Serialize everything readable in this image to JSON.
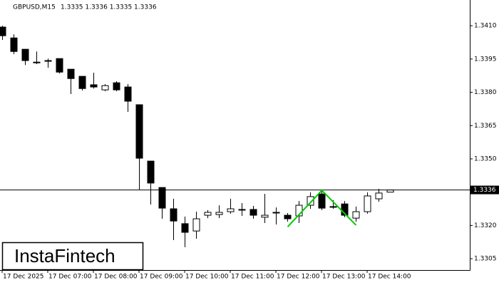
{
  "chart_data": {
    "type": "candlestick",
    "title": "GBPUSD,M15",
    "subtitle": "1.3335 1.3336 1.3335 1.3336",
    "watermark": "InstaFintech",
    "categories": [
      "17 Dec 2025",
      null,
      null,
      null,
      "17 Dec 07:00",
      null,
      null,
      null,
      "17 Dec 08:00",
      null,
      null,
      null,
      "17 Dec 09:00",
      null,
      null,
      null,
      "17 Dec 10:00",
      null,
      null,
      null,
      "17 Dec 11:00",
      null,
      null,
      null,
      "17 Dec 12:00",
      null,
      null,
      null,
      "17 Dec 13:00",
      null,
      null,
      null,
      "17 Dec 14:00",
      null,
      null
    ],
    "open": [
      1.34094,
      1.34045,
      1.33994,
      1.33936,
      1.33943,
      1.33952,
      1.33904,
      1.33872,
      1.33834,
      1.33811,
      1.33843,
      1.33824,
      1.33744,
      1.3349,
      1.33371,
      1.33275,
      1.33208,
      1.33175,
      1.33246,
      1.33249,
      1.33262,
      1.33272,
      1.33272,
      1.33237,
      1.33259,
      1.33246,
      1.33243,
      1.33291,
      1.33342,
      1.33285,
      1.33297,
      1.33233,
      1.33262,
      1.3332,
      1.3335
    ],
    "high": [
      1.341,
      1.34061,
      1.33994,
      1.33984,
      1.33952,
      1.33952,
      1.33904,
      1.33872,
      1.33888,
      1.33837,
      1.3385,
      1.33837,
      1.33744,
      1.3349,
      1.33371,
      1.3332,
      1.3324,
      1.33262,
      1.33269,
      1.33291,
      1.3332,
      1.33301,
      1.33288,
      1.33342,
      1.33281,
      1.33256,
      1.3331,
      1.33349,
      1.33362,
      1.33314,
      1.3331,
      1.33285,
      1.33349,
      1.33365,
      1.3336
    ],
    "low": [
      1.34036,
      1.33972,
      1.33923,
      1.33927,
      1.33911,
      1.33885,
      1.33792,
      1.33808,
      1.33817,
      1.33805,
      1.33805,
      1.33712,
      1.33362,
      1.33294,
      1.3323,
      1.33134,
      1.33102,
      1.3314,
      1.33233,
      1.33233,
      1.33253,
      1.33243,
      1.3323,
      1.33211,
      1.33204,
      1.33217,
      1.33211,
      1.33275,
      1.33269,
      1.33275,
      1.33237,
      1.33217,
      1.33253,
      1.33307,
      1.3335
    ],
    "close": [
      1.34055,
      1.33984,
      1.33943,
      1.33936,
      1.33943,
      1.33891,
      1.33862,
      1.33817,
      1.33824,
      1.3383,
      1.33811,
      1.3376,
      1.33503,
      1.33391,
      1.33278,
      1.3322,
      1.33169,
      1.3323,
      1.33259,
      1.33259,
      1.33275,
      1.33272,
      1.33246,
      1.33246,
      1.33259,
      1.3323,
      1.33291,
      1.3333,
      1.33278,
      1.33285,
      1.33246,
      1.33262,
      1.33333,
      1.33346,
      1.3336
    ],
    "up_color": "#ffffff",
    "down_color": "#000000",
    "last_price": 1.3336,
    "pattern": {
      "color": "#00cc00",
      "x": [
        25,
        28,
        31
      ],
      "values": [
        1.33194,
        1.33358,
        1.33201
      ]
    },
    "ylim": [
      1.32999,
      1.34216
    ],
    "yticks": [
      1.3305,
      {
        "value": 1.332,
        "label": "1.3320"
      },
      {
        "value": 1.335,
        "label": "1.3350"
      },
      1.3365,
      {
        "value": 1.338,
        "label": "1.3380"
      },
      1.3395,
      {
        "value": 1.341,
        "label": "1.3410"
      }
    ]
  }
}
